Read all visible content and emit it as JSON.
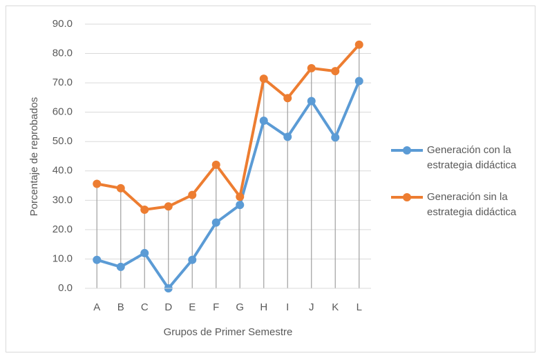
{
  "chart_data": {
    "type": "line",
    "categories": [
      "A",
      "B",
      "C",
      "D",
      "E",
      "F",
      "G",
      "H",
      "I",
      "J",
      "K",
      "L"
    ],
    "series": [
      {
        "name": "Generación con la estrategia didáctica",
        "color": "#5b9bd5",
        "values": [
          9.7,
          7.3,
          12.0,
          0.0,
          9.7,
          22.4,
          28.4,
          57.1,
          51.6,
          63.8,
          51.4,
          70.6
        ]
      },
      {
        "name": "Generación sin la estrategia didáctica",
        "color": "#ed7d31",
        "values": [
          35.6,
          34.1,
          26.8,
          27.9,
          31.8,
          42.1,
          31.2,
          71.4,
          64.8,
          75.0,
          74.0,
          83.0
        ]
      }
    ],
    "xlabel": "Grupos de Primer Semestre",
    "ylabel": "Porcentaje de reprobados",
    "ylim": [
      0,
      90
    ],
    "yticks": [
      {
        "value": 0,
        "label": "0.0"
      },
      {
        "value": 10,
        "label": "10.0"
      },
      {
        "value": 20,
        "label": "20.0"
      },
      {
        "value": 30,
        "label": "30.0"
      },
      {
        "value": 40,
        "label": "40.0"
      },
      {
        "value": 50,
        "label": "50.0"
      },
      {
        "value": 60,
        "label": "60.0"
      },
      {
        "value": 70,
        "label": "70.0"
      },
      {
        "value": 80,
        "label": "80.0"
      },
      {
        "value": 90,
        "label": "90.0"
      }
    ],
    "grid": true,
    "legend": "right"
  }
}
